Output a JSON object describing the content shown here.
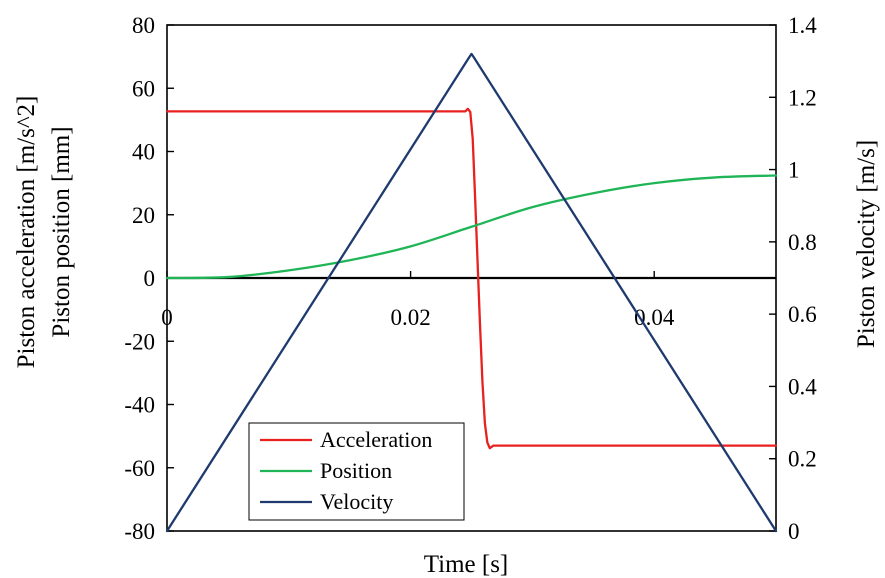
{
  "chart_data": {
    "type": "line",
    "xlabel": "Time [s]",
    "ylabel_left": [
      "Piston acceleration [m/s^2]",
      "Piston position [mm]"
    ],
    "ylabel_right": "Piston velocity [m/s]",
    "xlim": [
      0,
      0.05
    ],
    "ylim_left": [
      -80,
      80
    ],
    "ylim_right": [
      0,
      1.4
    ],
    "x_ticks": [
      0,
      0.02,
      0.04
    ],
    "x_tick_labels": [
      "0",
      "0.02",
      "0.04"
    ],
    "y_left_ticks": [
      80,
      60,
      40,
      20,
      0,
      -20,
      -40,
      -60,
      -80
    ],
    "y_left_tick_labels": [
      "80",
      "60",
      "40",
      "20",
      "0",
      "-20",
      "-40",
      "-60",
      "-80"
    ],
    "y_right_ticks": [
      1.4,
      1.2,
      1.0,
      0.8,
      0.6,
      0.4,
      0.2,
      0
    ],
    "y_right_tick_labels": [
      "1.4",
      "1.2",
      "1",
      "0.8",
      "0.6",
      "0.4",
      "0.2",
      "0"
    ],
    "grid": false,
    "legend": {
      "placement": "bottom-left",
      "entries": [
        "Acceleration",
        "Position",
        "Velocity"
      ]
    },
    "series": [
      {
        "name": "Acceleration",
        "axis": "left",
        "color": "#e8211f",
        "x": [
          0,
          0.0245,
          0.0247,
          0.0249,
          0.0251,
          0.0253,
          0.0255,
          0.0257,
          0.0259,
          0.0261,
          0.0263,
          0.0265,
          0.0268,
          0.05
        ],
        "y": [
          52.7,
          52.7,
          53.5,
          52.5,
          44.0,
          25.0,
          5.0,
          -15.0,
          -33.0,
          -46.0,
          -52.0,
          -53.8,
          -53.0,
          -53.0
        ]
      },
      {
        "name": "Position",
        "axis": "left",
        "color": "#1fb557",
        "x": [
          0,
          0.005,
          0.01,
          0.015,
          0.02,
          0.025,
          0.03,
          0.035,
          0.04,
          0.045,
          0.05
        ],
        "y": [
          0,
          0.3,
          2.4,
          5.6,
          10.0,
          16.2,
          22.4,
          26.8,
          30.0,
          31.8,
          32.4
        ]
      },
      {
        "name": "Velocity",
        "axis": "right",
        "color": "#1f3a6e",
        "x": [
          0,
          0.0248,
          0.025,
          0.0252,
          0.05
        ],
        "y": [
          0,
          1.31,
          1.32,
          1.31,
          0
        ]
      }
    ]
  }
}
